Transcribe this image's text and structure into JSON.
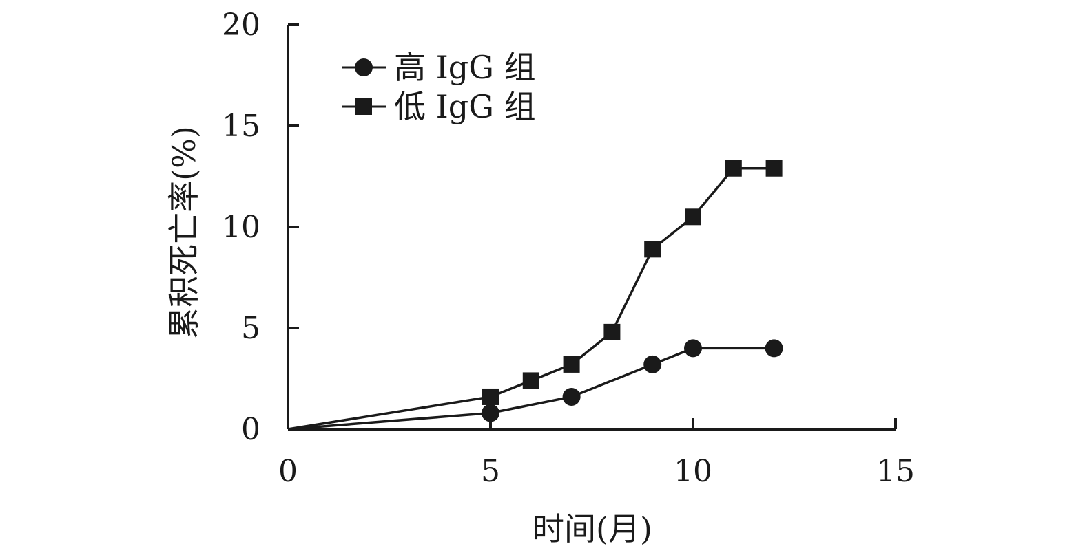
{
  "chart_data": {
    "type": "line",
    "title": "",
    "xlabel": "时间(月)",
    "ylabel": "累积死亡率(%)",
    "xlim": [
      0,
      15
    ],
    "ylim": [
      0,
      20
    ],
    "xticks": [
      0,
      5,
      10,
      15
    ],
    "yticks": [
      0,
      5,
      10,
      15,
      20
    ],
    "xtick_labels": [
      "0",
      "5",
      "10",
      "15"
    ],
    "ytick_labels": [
      "0",
      "5",
      "10",
      "15",
      "20"
    ],
    "grid": false,
    "legend_position": "top-left",
    "series": [
      {
        "name": "高 IgG 组",
        "marker": "circle",
        "color": "#1a1a1a",
        "x": [
          0,
          5,
          7,
          9,
          10,
          12
        ],
        "y": [
          0,
          0.8,
          1.6,
          3.2,
          4.0,
          4.0
        ]
      },
      {
        "name": "低 IgG 组",
        "marker": "square",
        "color": "#1a1a1a",
        "x": [
          0,
          5,
          6,
          7,
          8,
          9,
          10,
          11,
          12
        ],
        "y": [
          0,
          1.6,
          2.4,
          3.2,
          4.8,
          8.9,
          10.5,
          12.9,
          12.9
        ]
      }
    ]
  }
}
